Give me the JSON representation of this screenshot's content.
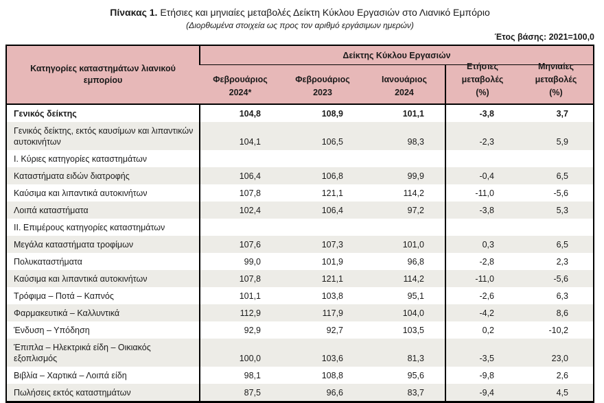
{
  "colors": {
    "header_bg": "#e7b8b8",
    "row_shade": "#edece7",
    "border": "#000000",
    "text": "#1a1a1a"
  },
  "title": {
    "prefix": "Πίνακας 1.",
    "text": " Ετήσιες και μηνιαίες μεταβολές Δείκτη Κύκλου Εργασιών στο Λιανικό Εμπόριο",
    "subtitle": "(Διορθωμένα στοιχεία ως προς τον αριθμό εργάσιμων ημερών)"
  },
  "base_year_note": "Έτος βάσης: 2021=100,0",
  "table": {
    "category_header": "Κατηγορίες καταστημάτων λιανικού εμπορίου",
    "group_header": "Δείκτης Κύκλου Εργασιών",
    "columns": [
      "Φεβρουάριος\n2024*",
      "Φεβρουάριος\n2023",
      "Ιανουάριος\n2024",
      "Ετήσιες\nμεταβολές\n(%)",
      "Μηνιαίες\nμεταβολές\n(%)"
    ],
    "rows": [
      {
        "label": "Γενικός δείκτης",
        "style": "bold",
        "shaded": false,
        "values": [
          "104,8",
          "108,9",
          "101,1",
          "-3,8",
          "3,7"
        ]
      },
      {
        "label": "Γενικός δείκτης, εκτός καυσίμων και λιπαντικών αυτοκινήτων",
        "style": "normal",
        "shaded": true,
        "values": [
          "104,1",
          "106,5",
          "98,3",
          "-2,3",
          "5,9"
        ]
      },
      {
        "label": "Ι. Κύριες κατηγορίες καταστημάτων",
        "style": "section",
        "shaded": false,
        "values": [
          "",
          "",
          "",
          "",
          ""
        ]
      },
      {
        "label": "Καταστήματα ειδών διατροφής",
        "style": "normal",
        "shaded": true,
        "values": [
          "106,4",
          "106,8",
          "99,9",
          "-0,4",
          "6,5"
        ]
      },
      {
        "label": "Καύσιμα και λιπαντικά αυτοκινήτων",
        "style": "normal",
        "shaded": false,
        "values": [
          "107,8",
          "121,1",
          "114,2",
          "-11,0",
          "-5,6"
        ]
      },
      {
        "label": "Λοιπά καταστήματα",
        "style": "normal",
        "shaded": true,
        "values": [
          "102,4",
          "106,4",
          "97,2",
          "-3,8",
          "5,3"
        ]
      },
      {
        "label": "ΙΙ. Επιμέρους κατηγορίες καταστημάτων",
        "style": "section",
        "shaded": false,
        "values": [
          "",
          "",
          "",
          "",
          ""
        ]
      },
      {
        "label": "Μεγάλα καταστήματα τροφίμων",
        "style": "normal",
        "shaded": true,
        "values": [
          "107,6",
          "107,3",
          "101,0",
          "0,3",
          "6,5"
        ]
      },
      {
        "label": "Πολυκαταστήματα",
        "style": "normal",
        "shaded": false,
        "values": [
          "99,0",
          "101,9",
          "96,8",
          "-2,8",
          "2,3"
        ]
      },
      {
        "label": "Καύσιμα και λιπαντικά αυτοκινήτων",
        "style": "normal",
        "shaded": true,
        "values": [
          "107,8",
          "121,1",
          "114,2",
          "-11,0",
          "-5,6"
        ]
      },
      {
        "label": "Τρόφιμα – Ποτά – Καπνός",
        "style": "normal",
        "shaded": false,
        "values": [
          "101,1",
          "103,8",
          "95,1",
          "-2,6",
          "6,3"
        ]
      },
      {
        "label": "Φαρμακευτικά – Καλλυντικά",
        "style": "normal",
        "shaded": true,
        "values": [
          "112,9",
          "117,9",
          "104,0",
          "-4,2",
          "8,6"
        ]
      },
      {
        "label": "Ένδυση – Υπόδηση",
        "style": "normal",
        "shaded": false,
        "values": [
          "92,9",
          "92,7",
          "103,5",
          "0,2",
          "-10,2"
        ]
      },
      {
        "label": "Έπιπλα – Ηλεκτρικά είδη – Οικιακός εξοπλισμός",
        "style": "normal",
        "shaded": true,
        "values": [
          "100,0",
          "103,6",
          "81,3",
          "-3,5",
          "23,0"
        ]
      },
      {
        "label": "Βιβλία – Χαρτικά – Λοιπά είδη",
        "style": "normal",
        "shaded": false,
        "values": [
          "98,1",
          "108,8",
          "95,6",
          "-9,8",
          "2,6"
        ]
      },
      {
        "label": "Πωλήσεις εκτός καταστημάτων",
        "style": "normal",
        "shaded": true,
        "values": [
          "87,5",
          "96,6",
          "83,7",
          "-9,4",
          "4,5"
        ]
      }
    ]
  }
}
